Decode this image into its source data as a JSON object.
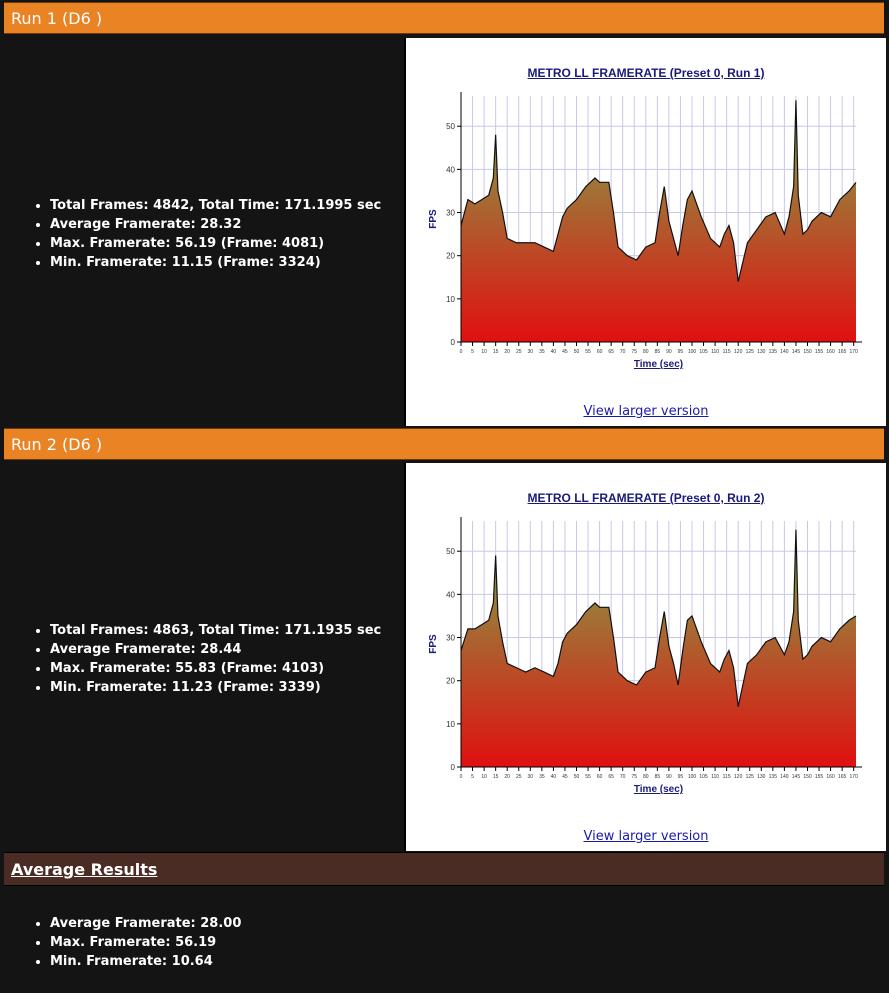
{
  "runs": [
    {
      "header": "Run 1 (D6 )",
      "stats": [
        "Total Frames: 4842, Total Time: 171.1995 sec",
        "Average Framerate: 28.32",
        "Max. Framerate: 56.19 (Frame: 4081)",
        "Min. Framerate: 11.15 (Frame: 3324)"
      ],
      "link_label": "View larger version",
      "chart_data": {
        "type": "area",
        "title": "METRO LL FRAMERATE (Preset 0, Run 1)",
        "xlabel": "Time (sec)",
        "ylabel": "FPS",
        "xlim": [
          0,
          171
        ],
        "ylim": [
          0,
          57
        ],
        "yticks": [
          0,
          10,
          20,
          30,
          40,
          50
        ],
        "xticks": [
          0,
          5,
          10,
          15,
          20,
          25,
          30,
          35,
          40,
          45,
          50,
          55,
          60,
          65,
          70,
          75,
          80,
          85,
          90,
          95,
          100,
          105,
          110,
          115,
          120,
          125,
          130,
          135,
          140,
          145,
          150,
          155,
          160,
          165,
          170
        ],
        "grid": true,
        "x": [
          0,
          3,
          6,
          9,
          12,
          14,
          15,
          16,
          18,
          20,
          24,
          28,
          32,
          36,
          40,
          42,
          44,
          46,
          50,
          54,
          58,
          60,
          64,
          66,
          68,
          72,
          76,
          80,
          84,
          86,
          88,
          90,
          92,
          94,
          96,
          98,
          100,
          104,
          108,
          112,
          114,
          116,
          118,
          120,
          124,
          128,
          132,
          136,
          140,
          142,
          144,
          145,
          146,
          148,
          150,
          152,
          156,
          160,
          164,
          168,
          171
        ],
        "y": [
          27,
          33,
          32,
          33,
          34,
          38,
          48,
          35,
          30,
          24,
          23,
          23,
          23,
          22,
          21,
          25,
          29,
          31,
          33,
          36,
          38,
          37,
          37,
          30,
          22,
          20,
          19,
          22,
          23,
          30,
          36,
          28,
          24,
          20,
          27,
          33,
          35,
          29,
          24,
          22,
          25,
          27,
          23,
          14,
          23,
          26,
          29,
          30,
          25,
          29,
          36,
          56,
          34,
          25,
          26,
          28,
          30,
          29,
          33,
          35,
          37
        ]
      }
    },
    {
      "header": "Run 2 (D6 )",
      "stats": [
        "Total Frames: 4863, Total Time: 171.1935 sec",
        "Average Framerate: 28.44",
        "Max. Framerate: 55.83 (Frame: 4103)",
        "Min. Framerate: 11.23 (Frame: 3339)"
      ],
      "link_label": "View larger version",
      "chart_data": {
        "type": "area",
        "title": "METRO LL FRAMERATE (Preset 0, Run 2)",
        "xlabel": "Time (sec)",
        "ylabel": "FPS",
        "xlim": [
          0,
          171
        ],
        "ylim": [
          0,
          57
        ],
        "yticks": [
          0,
          10,
          20,
          30,
          40,
          50
        ],
        "xticks": [
          0,
          5,
          10,
          15,
          20,
          25,
          30,
          35,
          40,
          45,
          50,
          55,
          60,
          65,
          70,
          75,
          80,
          85,
          90,
          95,
          100,
          105,
          110,
          115,
          120,
          125,
          130,
          135,
          140,
          145,
          150,
          155,
          160,
          165,
          170
        ],
        "grid": true,
        "x": [
          0,
          3,
          6,
          9,
          12,
          14,
          15,
          16,
          18,
          20,
          24,
          28,
          32,
          36,
          40,
          42,
          44,
          46,
          50,
          54,
          58,
          60,
          64,
          66,
          68,
          72,
          76,
          80,
          84,
          86,
          88,
          90,
          92,
          94,
          96,
          98,
          100,
          104,
          108,
          112,
          114,
          116,
          118,
          120,
          124,
          128,
          132,
          136,
          140,
          142,
          144,
          145,
          146,
          148,
          150,
          152,
          156,
          160,
          164,
          168,
          171
        ],
        "y": [
          27,
          32,
          32,
          33,
          34,
          38,
          49,
          35,
          29,
          24,
          23,
          22,
          23,
          22,
          21,
          24,
          29,
          31,
          33,
          36,
          38,
          37,
          37,
          30,
          22,
          20,
          19,
          22,
          23,
          30,
          36,
          28,
          24,
          19,
          27,
          34,
          35,
          29,
          24,
          22,
          25,
          27,
          23,
          14,
          24,
          26,
          29,
          30,
          26,
          29,
          36,
          55,
          34,
          25,
          26,
          28,
          30,
          29,
          32,
          34,
          35
        ]
      }
    }
  ],
  "average": {
    "title": "Average Results",
    "stats": [
      "Average Framerate: 28.00",
      "Max. Framerate: 56.19",
      "Min. Framerate: 10.64"
    ]
  },
  "colors": {
    "header_orange": "#e98324",
    "avg_header_brown": "#4a2c24",
    "background": "#141414",
    "fill_top": "#7ea94a",
    "fill_bottom": "#e01010"
  }
}
